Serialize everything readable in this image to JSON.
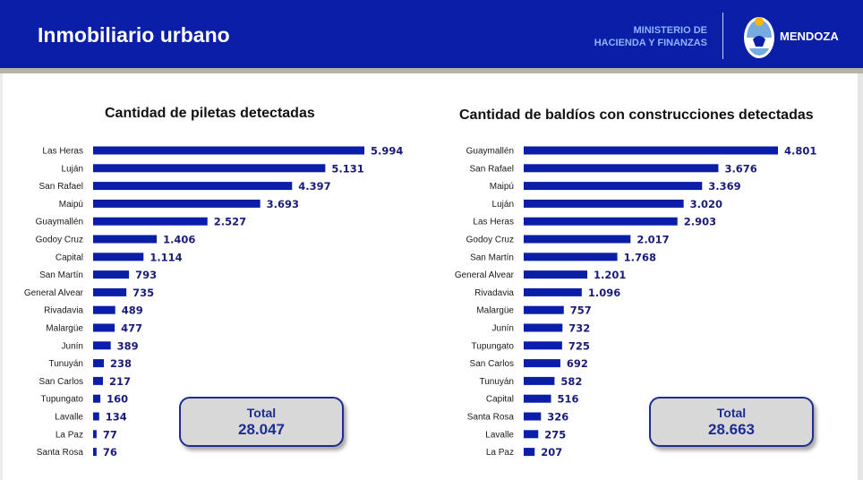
{
  "header": {
    "title": "Inmobiliario urbano",
    "ministry_line1": "MINISTERIO DE",
    "ministry_line2": "HACIENDA Y FINANZAS",
    "province": "MENDOZA",
    "colors": {
      "bar": "#0a1ea8",
      "accent": "#0a1ea8"
    }
  },
  "chart_data": [
    {
      "type": "bar",
      "orientation": "horizontal",
      "title": "Cantidad de piletas detectadas",
      "categories": [
        "Las Heras",
        "Luján",
        "San Rafael",
        "Maipú",
        "Guaymallén",
        "Godoy Cruz",
        "Capital",
        "San Martín",
        "General Alvear",
        "Rivadavia",
        "Malargüe",
        "Junín",
        "Tunuyán",
        "San Carlos",
        "Tupungato",
        "Lavalle",
        "La Paz",
        "Santa Rosa"
      ],
      "values": [
        5994,
        5131,
        4397,
        3693,
        2527,
        1406,
        1114,
        793,
        735,
        489,
        477,
        389,
        238,
        217,
        160,
        134,
        77,
        76
      ],
      "value_labels": [
        "5.994",
        "5.131",
        "4.397",
        "3.693",
        "2.527",
        "1.406",
        "1.114",
        "793",
        "735",
        "489",
        "477",
        "389",
        "238",
        "217",
        "160",
        "134",
        "77",
        "76"
      ],
      "total_label": "Total",
      "total_value": "28.047",
      "xlim": [
        0,
        6000
      ],
      "grid": false
    },
    {
      "type": "bar",
      "orientation": "horizontal",
      "title": "Cantidad de baldíos con construcciones detectadas",
      "categories": [
        "Guaymallén",
        "San Rafael",
        "Maipú",
        "Luján",
        "Las Heras",
        "Godoy Cruz",
        "San Martín",
        "General Alvear",
        "Rivadavia",
        "Malargüe",
        "Junín",
        "Tupungato",
        "San Carlos",
        "Tunuyán",
        "Capital",
        "Santa Rosa",
        "Lavalle",
        "La Paz"
      ],
      "values": [
        4801,
        3676,
        3369,
        3020,
        2903,
        2017,
        1768,
        1201,
        1096,
        757,
        732,
        725,
        692,
        582,
        516,
        326,
        275,
        207
      ],
      "value_labels": [
        "4.801",
        "3.676",
        "3.369",
        "3.020",
        "2.903",
        "2.017",
        "1.768",
        "1.201",
        "1.096",
        "757",
        "732",
        "725",
        "692",
        "582",
        "516",
        "326",
        "275",
        "207"
      ],
      "total_label": "Total",
      "total_value": "28.663",
      "xlim": [
        0,
        4800
      ],
      "grid": false
    }
  ]
}
